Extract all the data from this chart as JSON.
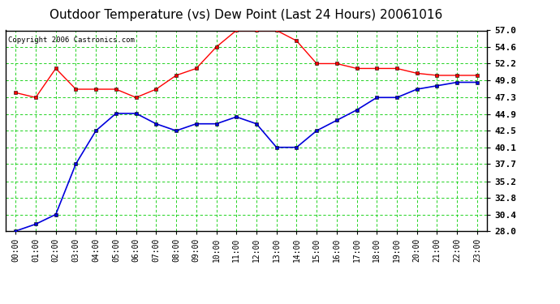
{
  "title": "Outdoor Temperature (vs) Dew Point (Last 24 Hours) 20061016",
  "copyright": "Copyright 2006 Castronics.com",
  "hours": [
    "00:00",
    "01:00",
    "02:00",
    "03:00",
    "04:00",
    "05:00",
    "06:00",
    "07:00",
    "08:00",
    "09:00",
    "10:00",
    "11:00",
    "12:00",
    "13:00",
    "14:00",
    "15:00",
    "16:00",
    "17:00",
    "18:00",
    "19:00",
    "20:00",
    "21:00",
    "22:00",
    "23:00"
  ],
  "temp": [
    48.0,
    47.3,
    51.5,
    48.5,
    48.5,
    48.5,
    47.3,
    48.5,
    50.5,
    51.5,
    54.6,
    57.0,
    57.0,
    57.0,
    55.5,
    52.2,
    52.2,
    51.5,
    51.5,
    51.5,
    50.8,
    50.5,
    50.5,
    50.5
  ],
  "dew": [
    28.0,
    29.0,
    30.4,
    37.7,
    42.5,
    45.0,
    45.0,
    43.5,
    42.5,
    43.5,
    43.5,
    44.5,
    43.5,
    40.1,
    40.1,
    42.5,
    44.0,
    45.5,
    47.3,
    47.3,
    48.5,
    49.0,
    49.5,
    49.5
  ],
  "ylim_min": 28.0,
  "ylim_max": 57.0,
  "ytick_vals": [
    28.0,
    30.4,
    32.8,
    35.2,
    37.7,
    40.1,
    42.5,
    44.9,
    47.3,
    49.8,
    52.2,
    54.6,
    57.0
  ],
  "ytick_labels": [
    "28.0",
    "30.4",
    "32.8",
    "35.2",
    "37.7",
    "40.1",
    "42.5",
    "44.9",
    "47.3",
    "49.8",
    "52.2",
    "54.6",
    "57.0"
  ],
  "temp_color": "#ff0000",
  "dew_color": "#0000dd",
  "bg_color": "#ffffff",
  "plot_bg_color": "#ffffff",
  "grid_color": "#00cc00",
  "border_color": "#000000",
  "title_fontsize": 11,
  "copyright_fontsize": 6.5,
  "tick_fontsize": 7,
  "ytick_fontsize": 8
}
